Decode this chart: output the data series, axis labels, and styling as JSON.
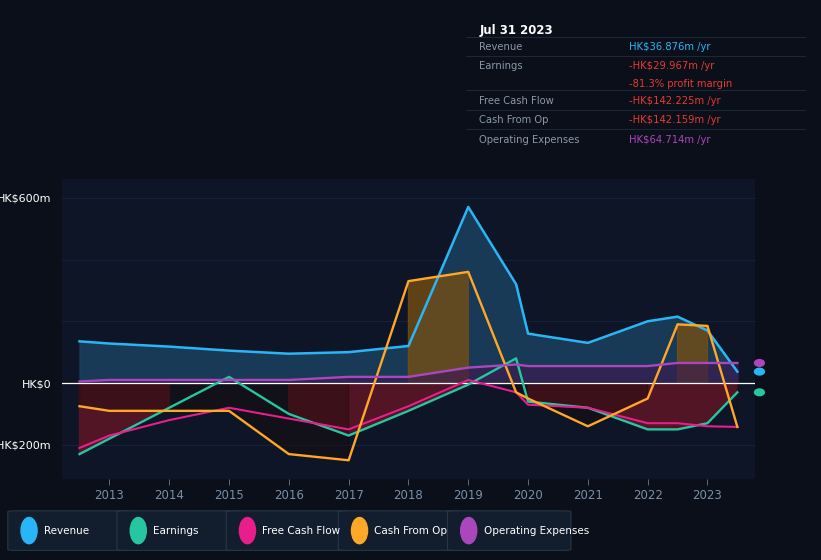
{
  "bg_color": "#0b0f19",
  "chart_bg": "#0d1526",
  "grid_color": "#1a2540",
  "years": [
    2012.5,
    2013,
    2014,
    2015,
    2016,
    2017,
    2018,
    2019,
    2019.8,
    2020,
    2021,
    2022,
    2022.5,
    2023,
    2023.5
  ],
  "revenue": [
    135,
    128,
    118,
    105,
    95,
    100,
    120,
    570,
    320,
    160,
    130,
    200,
    215,
    170,
    37
  ],
  "earnings": [
    -230,
    -180,
    -80,
    20,
    -100,
    -170,
    -90,
    -5,
    80,
    -60,
    -80,
    -150,
    -150,
    -130,
    -30
  ],
  "free_cash_flow": [
    -210,
    -170,
    -120,
    -80,
    -115,
    -150,
    -75,
    10,
    -30,
    -70,
    -80,
    -130,
    -130,
    -140,
    -142
  ],
  "cash_from_op": [
    -75,
    -90,
    -90,
    -90,
    -230,
    -250,
    330,
    360,
    -30,
    -50,
    -140,
    -50,
    190,
    185,
    -142
  ],
  "operating_expenses": [
    5,
    10,
    10,
    10,
    10,
    20,
    20,
    50,
    60,
    55,
    55,
    55,
    65,
    65,
    65
  ],
  "ylim": [
    -310,
    660
  ],
  "colors": {
    "revenue": "#29b6f6",
    "earnings": "#26c6a0",
    "free_cash_flow": "#e91e8c",
    "cash_from_op": "#ffa726",
    "operating_expenses": "#ab47bc"
  },
  "fill_revenue": "#1a3f5c",
  "fill_earnings_neg": "#5a1525",
  "fill_cashop_pos": "#7a5010",
  "fill_opex": "#3a1a50",
  "ylabel_top": "HK$600m",
  "ylabel_zero": "HK$0",
  "ylabel_neg": "-HK$200m",
  "xtick_years": [
    2013,
    2014,
    2015,
    2016,
    2017,
    2018,
    2019,
    2020,
    2021,
    2022,
    2023
  ],
  "info_box": {
    "title": "Jul 31 2023",
    "revenue_label": "Revenue",
    "revenue_value": "HK$36.876m /yr",
    "revenue_color": "#29b6f6",
    "earnings_label": "Earnings",
    "earnings_value": "-HK$29.967m /yr",
    "earnings_color": "#e53935",
    "margin_value": "-81.3% profit margin",
    "margin_color": "#e53935",
    "fcf_label": "Free Cash Flow",
    "fcf_value": "-HK$142.225m /yr",
    "fcf_color": "#e53935",
    "cfo_label": "Cash From Op",
    "cfo_value": "-HK$142.159m /yr",
    "cfo_color": "#e53935",
    "opex_label": "Operating Expenses",
    "opex_value": "HK$64.714m /yr",
    "opex_color": "#ab47bc"
  },
  "legend": [
    {
      "label": "Revenue",
      "color": "#29b6f6"
    },
    {
      "label": "Earnings",
      "color": "#26c6a0"
    },
    {
      "label": "Free Cash Flow",
      "color": "#e91e8c"
    },
    {
      "label": "Cash From Op",
      "color": "#ffa726"
    },
    {
      "label": "Operating Expenses",
      "color": "#ab47bc"
    }
  ]
}
